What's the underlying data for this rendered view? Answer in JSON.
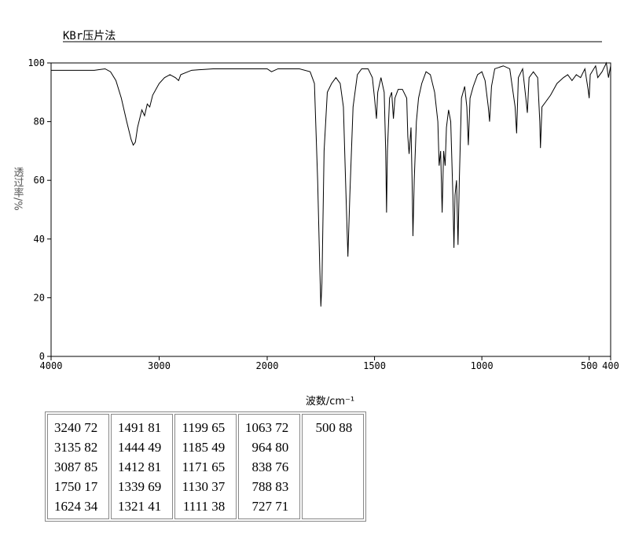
{
  "chart_data": {
    "type": "line",
    "title": "KBr压片法",
    "xlabel": "波数/cm⁻¹",
    "ylabel": "透过率/%",
    "xlim": [
      4000,
      400
    ],
    "xscale_break": 2000,
    "xticks": [
      4000,
      3000,
      2000,
      1500,
      1000,
      500,
      400
    ],
    "ylim": [
      0,
      100
    ],
    "yticks": [
      0,
      20,
      40,
      60,
      80,
      100
    ],
    "color": "#000000",
    "x": [
      4000,
      3800,
      3600,
      3500,
      3450,
      3400,
      3350,
      3300,
      3260,
      3240,
      3220,
      3200,
      3160,
      3135,
      3110,
      3087,
      3060,
      3000,
      2950,
      2900,
      2850,
      2820,
      2800,
      2700,
      2500,
      2200,
      2000,
      1980,
      1950,
      1850,
      1800,
      1780,
      1765,
      1755,
      1750,
      1745,
      1735,
      1720,
      1700,
      1680,
      1660,
      1645,
      1635,
      1624,
      1615,
      1600,
      1580,
      1560,
      1530,
      1510,
      1500,
      1491,
      1485,
      1470,
      1455,
      1448,
      1444,
      1440,
      1430,
      1420,
      1412,
      1405,
      1390,
      1370,
      1350,
      1345,
      1339,
      1330,
      1325,
      1321,
      1315,
      1305,
      1295,
      1280,
      1260,
      1240,
      1220,
      1205,
      1199,
      1192,
      1185,
      1178,
      1171,
      1165,
      1155,
      1145,
      1135,
      1130,
      1125,
      1118,
      1111,
      1105,
      1095,
      1080,
      1070,
      1063,
      1055,
      1040,
      1020,
      1000,
      985,
      970,
      964,
      955,
      940,
      900,
      870,
      845,
      838,
      830,
      810,
      795,
      788,
      780,
      760,
      740,
      730,
      727,
      720,
      700,
      680,
      650,
      620,
      600,
      580,
      560,
      540,
      520,
      505,
      500,
      495,
      470,
      460,
      440,
      420,
      410,
      400
    ],
    "values": [
      97.5,
      97.5,
      97.5,
      98,
      97,
      94,
      88,
      80,
      74,
      72,
      73,
      78,
      84,
      82,
      86,
      85,
      89,
      93,
      95,
      96,
      95,
      94,
      96,
      97.5,
      98,
      98,
      98,
      97,
      98,
      98,
      97,
      93,
      60,
      30,
      17,
      25,
      70,
      90,
      93,
      95,
      93,
      85,
      60,
      34,
      55,
      85,
      96,
      98,
      98,
      95,
      88,
      81,
      90,
      95,
      90,
      70,
      49,
      70,
      88,
      90,
      81,
      88,
      91,
      91,
      88,
      75,
      69,
      78,
      60,
      41,
      60,
      80,
      88,
      93,
      97,
      96,
      90,
      80,
      65,
      70,
      49,
      70,
      65,
      78,
      84,
      80,
      55,
      37,
      55,
      60,
      38,
      60,
      88,
      92,
      85,
      72,
      88,
      92,
      96,
      97,
      94,
      85,
      80,
      92,
      98,
      99,
      98,
      85,
      76,
      95,
      98,
      88,
      83,
      95,
      97,
      95,
      80,
      71,
      85,
      87,
      89,
      93,
      95,
      96,
      94,
      96,
      95,
      98,
      91,
      88,
      96,
      99,
      95,
      97,
      100,
      95,
      99
    ]
  },
  "peak_table": {
    "columns": [
      [
        [
          3240,
          72
        ],
        [
          3135,
          82
        ],
        [
          3087,
          85
        ],
        [
          1750,
          17
        ],
        [
          1624,
          34
        ]
      ],
      [
        [
          1491,
          81
        ],
        [
          1444,
          49
        ],
        [
          1412,
          81
        ],
        [
          1339,
          69
        ],
        [
          1321,
          41
        ]
      ],
      [
        [
          1199,
          65
        ],
        [
          1185,
          49
        ],
        [
          1171,
          65
        ],
        [
          1130,
          37
        ],
        [
          1111,
          38
        ]
      ],
      [
        [
          1063,
          72
        ],
        [
          964,
          80
        ],
        [
          838,
          76
        ],
        [
          788,
          83
        ],
        [
          727,
          71
        ]
      ],
      [
        [
          500,
          88
        ]
      ]
    ]
  }
}
